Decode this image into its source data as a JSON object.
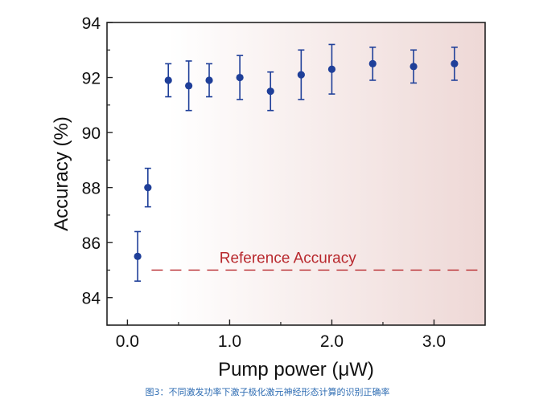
{
  "chart_data": {
    "type": "scatter",
    "xlabel": "Pump power (μW)",
    "ylabel": "Accuracy (%)",
    "xlim": [
      -0.2,
      3.5
    ],
    "ylim": [
      83,
      94
    ],
    "xticks": [
      0.0,
      1.0,
      2.0,
      3.0
    ],
    "xtick_labels": [
      "0.0",
      "1.0",
      "2.0",
      "3.0"
    ],
    "yticks": [
      84,
      86,
      88,
      90,
      92,
      94
    ],
    "ytick_labels": [
      "84",
      "86",
      "88",
      "90",
      "92",
      "94"
    ],
    "grid": false,
    "series": [
      {
        "x": [
          0.1,
          0.2,
          0.4,
          0.6,
          0.8,
          1.1,
          1.4,
          1.7,
          2.0,
          2.4,
          2.8,
          3.2
        ],
        "y": [
          85.5,
          88.0,
          91.9,
          91.7,
          91.9,
          92.0,
          91.5,
          92.1,
          92.3,
          92.5,
          92.4,
          92.5
        ],
        "err_low": [
          84.6,
          87.3,
          91.3,
          90.8,
          91.3,
          91.2,
          90.8,
          91.2,
          91.4,
          91.9,
          91.8,
          91.9
        ],
        "err_high": [
          86.4,
          88.7,
          92.5,
          92.6,
          92.5,
          92.8,
          92.2,
          93.0,
          93.2,
          93.1,
          93.0,
          93.1
        ],
        "color": "#1f3f99"
      }
    ],
    "reference_line": {
      "y": 85.0,
      "label": "Reference Accuracy",
      "color": "#b8282d",
      "style": "dashed"
    },
    "background_gradient": {
      "from": "#ffffff",
      "to": "#eed8d6",
      "start_x": 0.4
    }
  },
  "caption": "图3：不同激发功率下激子极化激元神经形态计算的识别正确率",
  "caption_color": "#2f6db3"
}
